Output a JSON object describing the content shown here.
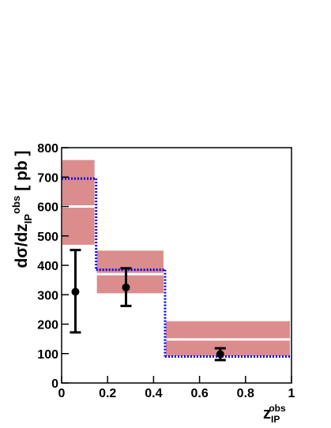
{
  "chart_data": {
    "type": "histogram",
    "xlabel": {
      "main": "z",
      "sub": "IP",
      "sup": "obs"
    },
    "ylabel": {
      "main": "dσ/dz",
      "sub": "IP",
      "sup": "obs",
      "unit": "[ pb ]"
    },
    "xlim": [
      0,
      1
    ],
    "ylim": [
      0,
      800
    ],
    "xticks": [
      0,
      0.2,
      0.4,
      0.6,
      0.8,
      1
    ],
    "yticks": [
      0,
      100,
      200,
      300,
      400,
      500,
      600,
      700,
      800
    ],
    "bins": [
      0,
      0.15,
      0.45,
      1
    ],
    "theory_band": {
      "color": "#db8c8c",
      "central_color": "#ffffff",
      "low": [
        470,
        305,
        92
      ],
      "high": [
        758,
        450,
        210
      ],
      "central": [
        600,
        370,
        148
      ]
    },
    "step": {
      "color": "#0000ff",
      "values": [
        695,
        385,
        90
      ]
    },
    "points": {
      "color": "#000000",
      "x": [
        0.06,
        0.28,
        0.69
      ],
      "values": [
        310,
        325,
        98
      ],
      "low": [
        172,
        262,
        78
      ],
      "high": [
        452,
        390,
        118
      ]
    }
  }
}
